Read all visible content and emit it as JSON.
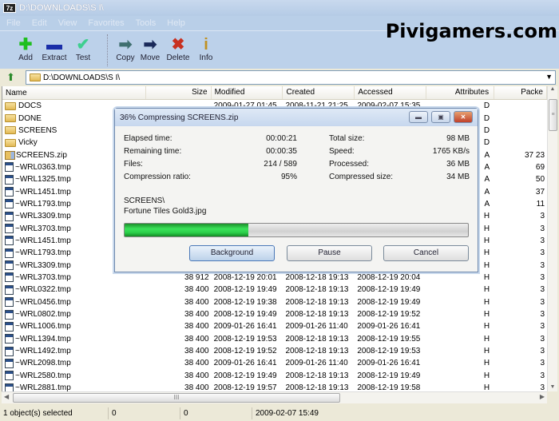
{
  "window": {
    "title": "D:\\DOWNLOADS\\S I\\",
    "app_icon": "7z"
  },
  "watermark": "Pivigamers.com",
  "menu": [
    "File",
    "Edit",
    "View",
    "Favorites",
    "Tools",
    "Help"
  ],
  "toolbar": [
    {
      "label": "Add",
      "icon": "plus-icon",
      "color": "#1fbf1f"
    },
    {
      "label": "Extract",
      "icon": "minus-icon",
      "color": "#1a2ea8"
    },
    {
      "label": "Test",
      "icon": "check-icon",
      "color": "#3fcf8f"
    },
    {
      "label": "Copy",
      "icon": "copy-arrow-icon",
      "color": "#3f6f6f"
    },
    {
      "label": "Move",
      "icon": "move-arrow-icon",
      "color": "#1a2a5a"
    },
    {
      "label": "Delete",
      "icon": "delete-x-icon",
      "color": "#c83020"
    },
    {
      "label": "Info",
      "icon": "info-icon",
      "color": "#c09020"
    }
  ],
  "address": "D:\\DOWNLOADS\\S I\\",
  "columns": [
    "Name",
    "Size",
    "Modified",
    "Created",
    "Accessed",
    "Attributes",
    "Packe"
  ],
  "rows": [
    {
      "type": "folder",
      "name": "DOCS",
      "size": "",
      "modified": "2009-01-27 01:45",
      "created": "2008-11-21 21:25",
      "accessed": "2009-02-07 15:35",
      "attr": "D",
      "packed": ""
    },
    {
      "type": "folder",
      "name": "DONE",
      "size": "",
      "modified": "",
      "created": "",
      "accessed": "",
      "attr": "D",
      "packed": ""
    },
    {
      "type": "folder",
      "name": "SCREENS",
      "size": "",
      "modified": "",
      "created": "",
      "accessed": "",
      "attr": "D",
      "packed": ""
    },
    {
      "type": "folder",
      "name": "Vicky",
      "size": "",
      "modified": "",
      "created": "",
      "accessed": "",
      "attr": "D",
      "packed": ""
    },
    {
      "type": "zip",
      "name": "SCREENS.zip",
      "size": "",
      "modified": "",
      "created": "",
      "accessed": "",
      "attr": "A",
      "packed": "37 23"
    },
    {
      "type": "tmp",
      "name": "~WRL0363.tmp",
      "size": "",
      "modified": "",
      "created": "",
      "accessed": "",
      "attr": "A",
      "packed": "69"
    },
    {
      "type": "tmp",
      "name": "~WRL1325.tmp",
      "size": "",
      "modified": "",
      "created": "",
      "accessed": "",
      "attr": "A",
      "packed": "50"
    },
    {
      "type": "tmp",
      "name": "~WRL1451.tmp",
      "size": "",
      "modified": "",
      "created": "",
      "accessed": "",
      "attr": "A",
      "packed": "37"
    },
    {
      "type": "tmp",
      "name": "~WRL1793.tmp",
      "size": "",
      "modified": "",
      "created": "",
      "accessed": "",
      "attr": "A",
      "packed": "11"
    },
    {
      "type": "tmp",
      "name": "~WRL3309.tmp",
      "size": "",
      "modified": "",
      "created": "",
      "accessed": "",
      "attr": "H",
      "packed": "3"
    },
    {
      "type": "tmp",
      "name": "~WRL3703.tmp",
      "size": "",
      "modified": "",
      "created": "",
      "accessed": "",
      "attr": "H",
      "packed": "3"
    },
    {
      "type": "tmp",
      "name": "~WRL1451.tmp",
      "size": "",
      "modified": "",
      "created": "",
      "accessed": "",
      "attr": "H",
      "packed": "3"
    },
    {
      "type": "tmp",
      "name": "~WRL1793.tmp",
      "size": "",
      "modified": "",
      "created": "",
      "accessed": "",
      "attr": "H",
      "packed": "3"
    },
    {
      "type": "tmp",
      "name": "~WRL3309.tmp",
      "size": "",
      "modified": "",
      "created": "",
      "accessed": "",
      "attr": "H",
      "packed": "3"
    },
    {
      "type": "tmp",
      "name": "~WRL3703.tmp",
      "size": "38 912",
      "modified": "2008-12-19 20:01",
      "created": "2008-12-18 19:13",
      "accessed": "2008-12-19 20:04",
      "attr": "H",
      "packed": "3"
    },
    {
      "type": "tmp",
      "name": "~WRL0322.tmp",
      "size": "38 400",
      "modified": "2008-12-19 19:49",
      "created": "2008-12-18 19:13",
      "accessed": "2008-12-19 19:49",
      "attr": "H",
      "packed": "3"
    },
    {
      "type": "tmp",
      "name": "~WRL0456.tmp",
      "size": "38 400",
      "modified": "2008-12-19 19:38",
      "created": "2008-12-18 19:13",
      "accessed": "2008-12-19 19:49",
      "attr": "H",
      "packed": "3"
    },
    {
      "type": "tmp",
      "name": "~WRL0802.tmp",
      "size": "38 400",
      "modified": "2008-12-19 19:49",
      "created": "2008-12-18 19:13",
      "accessed": "2008-12-19 19:52",
      "attr": "H",
      "packed": "3"
    },
    {
      "type": "tmp",
      "name": "~WRL1006.tmp",
      "size": "38 400",
      "modified": "2009-01-26 16:41",
      "created": "2009-01-26 11:40",
      "accessed": "2009-01-26 16:41",
      "attr": "H",
      "packed": "3"
    },
    {
      "type": "tmp",
      "name": "~WRL1394.tmp",
      "size": "38 400",
      "modified": "2008-12-19 19:53",
      "created": "2008-12-18 19:13",
      "accessed": "2008-12-19 19:55",
      "attr": "H",
      "packed": "3"
    },
    {
      "type": "tmp",
      "name": "~WRL1492.tmp",
      "size": "38 400",
      "modified": "2008-12-19 19:52",
      "created": "2008-12-18 19:13",
      "accessed": "2008-12-19 19:53",
      "attr": "H",
      "packed": "3"
    },
    {
      "type": "tmp",
      "name": "~WRL2098.tmp",
      "size": "38 400",
      "modified": "2009-01-26 16:41",
      "created": "2009-01-26 11:40",
      "accessed": "2009-01-26 16:41",
      "attr": "H",
      "packed": "3"
    },
    {
      "type": "tmp",
      "name": "~WRL2580.tmp",
      "size": "38 400",
      "modified": "2008-12-19 19:49",
      "created": "2008-12-18 19:13",
      "accessed": "2008-12-19 19:49",
      "attr": "H",
      "packed": "3"
    },
    {
      "type": "tmp",
      "name": "~WRL2881.tmp",
      "size": "38 400",
      "modified": "2008-12-19 19:57",
      "created": "2008-12-18 19:13",
      "accessed": "2008-12-19 19:58",
      "attr": "H",
      "packed": "3"
    }
  ],
  "status": {
    "selected": "1 object(s) selected",
    "size": "0",
    "packed": "0",
    "date": "2009-02-07 15:49"
  },
  "dialog": {
    "title": "36% Compressing SCREENS.zip",
    "left": [
      {
        "label": "Elapsed time:",
        "value": "00:00:21"
      },
      {
        "label": "Remaining time:",
        "value": "00:00:35"
      },
      {
        "label": "Files:",
        "value": "214 / 589"
      },
      {
        "label": "Compression ratio:",
        "value": "95%"
      }
    ],
    "right": [
      {
        "label": "Total size:",
        "value": "98 MB"
      },
      {
        "label": "Speed:",
        "value": "1765 KB/s"
      },
      {
        "label": "Processed:",
        "value": "36 MB"
      },
      {
        "label": "Compressed size:",
        "value": "34 MB"
      }
    ],
    "current_folder": "SCREENS\\",
    "current_file": "Fortune Tiles Gold3.jpg",
    "progress_percent": 36,
    "buttons": {
      "background": "Background",
      "pause": "Pause",
      "cancel": "Cancel"
    }
  }
}
